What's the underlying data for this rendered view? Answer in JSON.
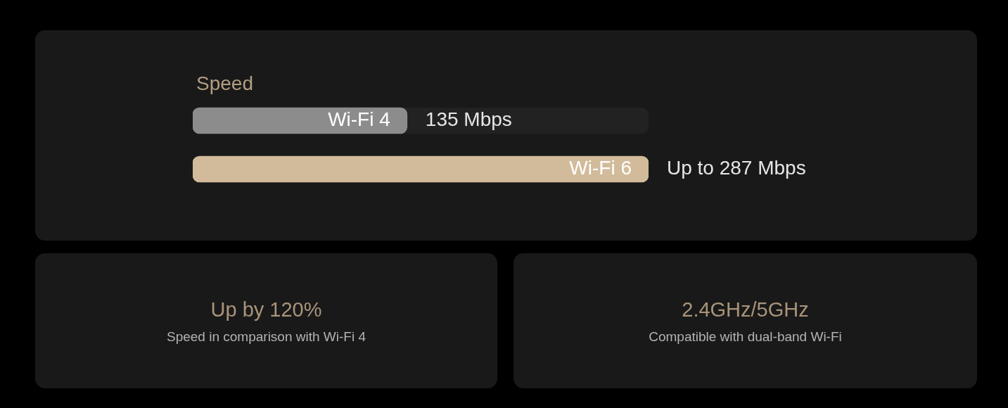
{
  "chart_data": [
    {
      "type": "bar",
      "orientation": "horizontal",
      "title": "Speed",
      "categories": [
        "Wi-Fi 4",
        "Wi-Fi 6"
      ],
      "values": [
        135,
        287
      ],
      "colors": [
        "#8c8c8c",
        "#d2bb9a"
      ],
      "value_labels": [
        "135 Mbps",
        "Up to 287 Mbps"
      ]
    },
    {
      "type": "other",
      "title": "Up by 120%",
      "subtitle": "Speed in comparison with Wi-Fi 4"
    },
    {
      "type": "other",
      "title": "2.4GHz/5GHz",
      "subtitle": "Compatible with dual-band Wi-Fi"
    }
  ]
}
